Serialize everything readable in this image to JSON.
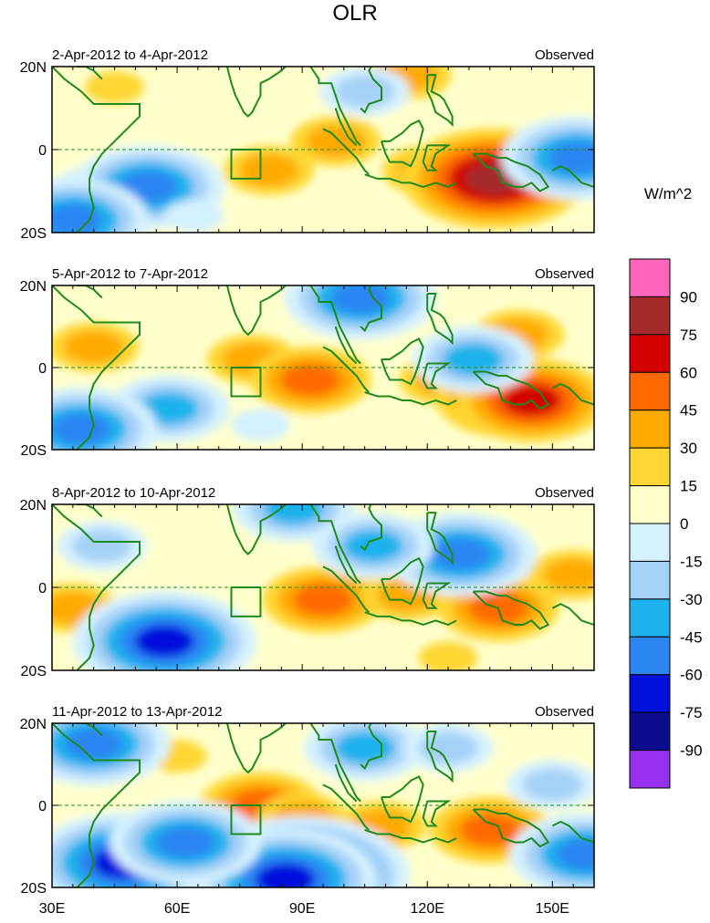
{
  "chart_data": {
    "type": "heatmap",
    "title": "OLR",
    "units": "W/m^2",
    "x_ticks": [
      "30E",
      "60E",
      "90E",
      "120E",
      "150E"
    ],
    "x_tick_values": [
      30,
      60,
      90,
      120,
      150
    ],
    "xlim": [
      30,
      160
    ],
    "y_ticks": [
      "20N",
      "0",
      "20S"
    ],
    "y_tick_values": [
      20,
      0,
      -20
    ],
    "ylim": [
      -20,
      20
    ],
    "reference_box": {
      "lon": [
        73,
        80
      ],
      "lat": [
        -7,
        0
      ]
    },
    "colorbar": {
      "labels": [
        "90",
        "75",
        "60",
        "45",
        "30",
        "15",
        "0",
        "-15",
        "-30",
        "-45",
        "-60",
        "-75",
        "-90"
      ],
      "levels": [
        90,
        75,
        60,
        45,
        30,
        15,
        0,
        -15,
        -30,
        -45,
        -60,
        -75,
        -90
      ],
      "colors": [
        "#ff66bb",
        "#a52a2a",
        "#d40000",
        "#ff6a00",
        "#ffaa00",
        "#ffd633",
        "#ffffcc",
        "#d4f1ff",
        "#a6d1f7",
        "#1fb2ee",
        "#2b86f2",
        "#0010dd",
        "#0c0c8f",
        "#9630ee"
      ]
    },
    "panels": [
      {
        "date_range": "2-Apr-2012 to 4-Apr-2012",
        "label": "Observed",
        "anomalies": [
          {
            "lon": 82,
            "lat": -5,
            "value": 35
          },
          {
            "lon": 98,
            "lat": 2,
            "value": 25
          },
          {
            "lon": 120,
            "lat": -5,
            "value": 30
          },
          {
            "lon": 133,
            "lat": -6,
            "value": 60
          },
          {
            "lon": 136,
            "lat": -7,
            "value": 75
          },
          {
            "lon": 45,
            "lat": 15,
            "value": 20
          },
          {
            "lon": 115,
            "lat": 18,
            "value": 25
          },
          {
            "lon": 42,
            "lat": -12,
            "value": -40
          },
          {
            "lon": 53,
            "lat": -9,
            "value": -65
          },
          {
            "lon": 35,
            "lat": -17,
            "value": -60
          },
          {
            "lon": 156,
            "lat": -2,
            "value": -65
          },
          {
            "lon": 105,
            "lat": 14,
            "value": -35
          },
          {
            "lon": 64,
            "lat": -16,
            "value": -15
          }
        ]
      },
      {
        "date_range": "5-Apr-2012 to 7-Apr-2012",
        "label": "Observed",
        "anomalies": [
          {
            "lon": 78,
            "lat": 2,
            "value": 35
          },
          {
            "lon": 92,
            "lat": -3,
            "value": 45
          },
          {
            "lon": 124,
            "lat": -3,
            "value": 35
          },
          {
            "lon": 140,
            "lat": -7,
            "value": 55
          },
          {
            "lon": 145,
            "lat": -8,
            "value": 60
          },
          {
            "lon": 40,
            "lat": 5,
            "value": 25
          },
          {
            "lon": 142,
            "lat": 8,
            "value": 30
          },
          {
            "lon": 58,
            "lat": -10,
            "value": -45
          },
          {
            "lon": 37,
            "lat": -15,
            "value": -55
          },
          {
            "lon": 104,
            "lat": 17,
            "value": -55
          },
          {
            "lon": 131,
            "lat": 2,
            "value": -45
          },
          {
            "lon": 80,
            "lat": -14,
            "value": -15
          }
        ]
      },
      {
        "date_range": "8-Apr-2012 to 10-Apr-2012",
        "label": "Observed",
        "anomalies": [
          {
            "lon": 95,
            "lat": -3,
            "value": 40
          },
          {
            "lon": 115,
            "lat": -2,
            "value": 35
          },
          {
            "lon": 137,
            "lat": -5,
            "value": 50
          },
          {
            "lon": 155,
            "lat": 3,
            "value": 25
          },
          {
            "lon": 35,
            "lat": -5,
            "value": 25
          },
          {
            "lon": 57,
            "lat": -13,
            "value": -75
          },
          {
            "lon": 128,
            "lat": 8,
            "value": -55
          },
          {
            "lon": 107,
            "lat": 10,
            "value": -45
          },
          {
            "lon": 88,
            "lat": 19,
            "value": -40
          },
          {
            "lon": 42,
            "lat": 10,
            "value": -30
          },
          {
            "lon": 125,
            "lat": -17,
            "value": 15
          }
        ]
      },
      {
        "date_range": "11-Apr-2012 to 13-Apr-2012",
        "label": "Observed",
        "anomalies": [
          {
            "lon": 80,
            "lat": 0,
            "value": 40
          },
          {
            "lon": 90,
            "lat": -3,
            "value": 35
          },
          {
            "lon": 109,
            "lat": -5,
            "value": 30
          },
          {
            "lon": 135,
            "lat": -6,
            "value": 45
          },
          {
            "lon": 60,
            "lat": 12,
            "value": 20
          },
          {
            "lon": 47,
            "lat": -14,
            "value": -75
          },
          {
            "lon": 90,
            "lat": -17,
            "value": -90
          },
          {
            "lon": 86,
            "lat": -18,
            "value": -80
          },
          {
            "lon": 62,
            "lat": -9,
            "value": -55
          },
          {
            "lon": 40,
            "lat": 15,
            "value": -60
          },
          {
            "lon": 158,
            "lat": -12,
            "value": -60
          },
          {
            "lon": 105,
            "lat": 14,
            "value": -40
          },
          {
            "lon": 125,
            "lat": 14,
            "value": -35
          },
          {
            "lon": 150,
            "lat": 5,
            "value": -30
          }
        ]
      }
    ]
  }
}
